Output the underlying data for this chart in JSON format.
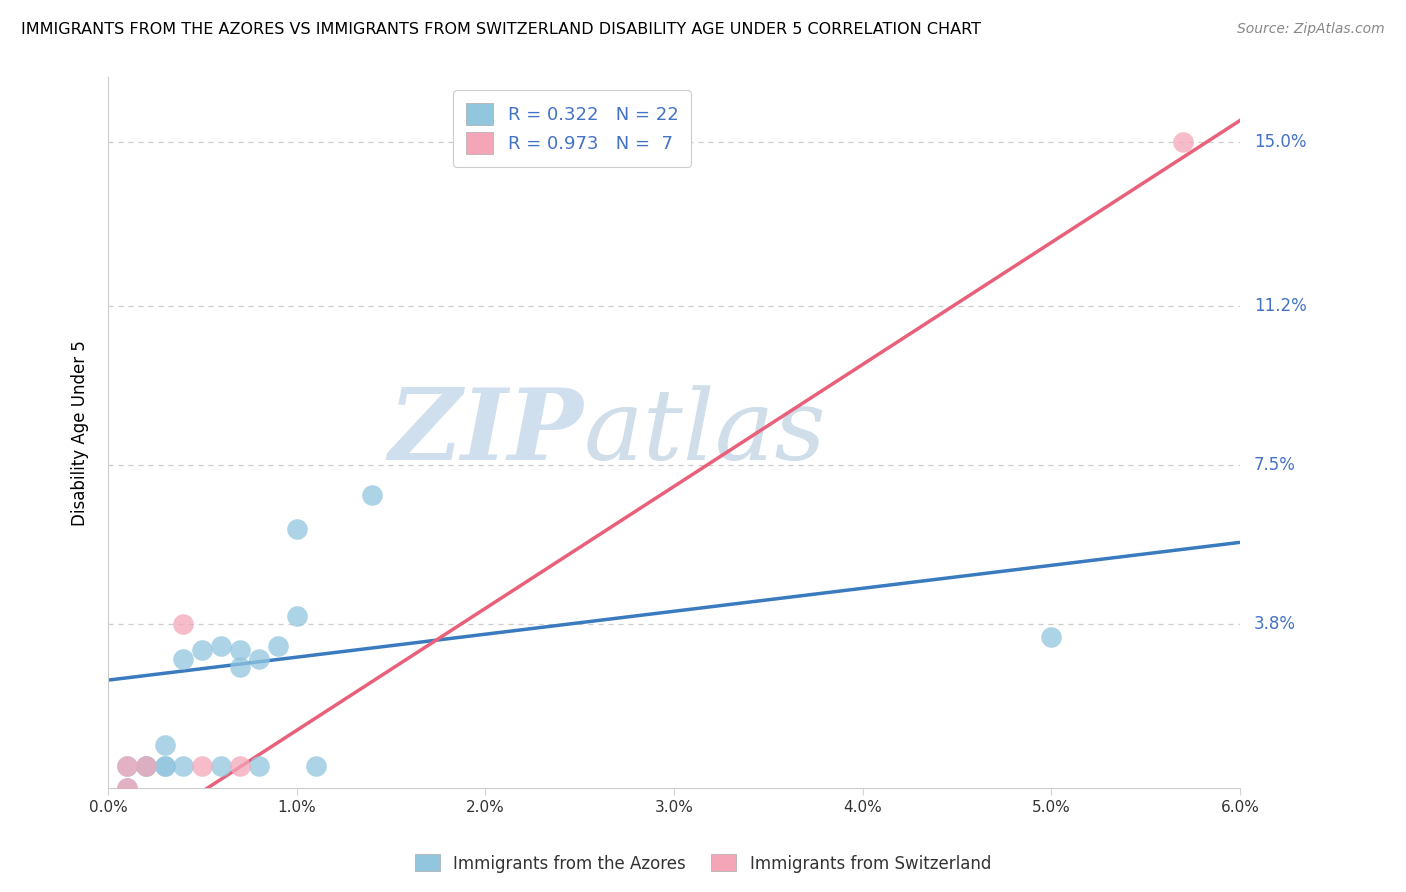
{
  "title": "IMMIGRANTS FROM THE AZORES VS IMMIGRANTS FROM SWITZERLAND DISABILITY AGE UNDER 5 CORRELATION CHART",
  "source": "Source: ZipAtlas.com",
  "ylabel": "Disability Age Under 5",
  "xmin": 0.0,
  "xmax": 0.06,
  "ymin": 0.0,
  "ymax": 0.165,
  "yticks": [
    0.0,
    0.038,
    0.075,
    0.112,
    0.15
  ],
  "ytick_labels": [
    "",
    "3.8%",
    "7.5%",
    "11.2%",
    "15.0%"
  ],
  "xticks": [
    0.0,
    0.01,
    0.02,
    0.03,
    0.04,
    0.05,
    0.06
  ],
  "watermark_zip": "ZIP",
  "watermark_atlas": "atlas",
  "legend_blue_r": "R = 0.322",
  "legend_blue_n": "N = 22",
  "legend_pink_r": "R = 0.973",
  "legend_pink_n": "N =  7",
  "blue_color": "#92c5de",
  "pink_color": "#f4a6b8",
  "blue_line_color": "#3a7bbf",
  "pink_line_color": "#e8607a",
  "blue_scatter": [
    [
      0.001,
      0.0
    ],
    [
      0.001,
      0.005
    ],
    [
      0.002,
      0.005
    ],
    [
      0.002,
      0.005
    ],
    [
      0.003,
      0.005
    ],
    [
      0.003,
      0.005
    ],
    [
      0.003,
      0.01
    ],
    [
      0.004,
      0.005
    ],
    [
      0.004,
      0.03
    ],
    [
      0.005,
      0.032
    ],
    [
      0.006,
      0.005
    ],
    [
      0.006,
      0.033
    ],
    [
      0.007,
      0.028
    ],
    [
      0.007,
      0.032
    ],
    [
      0.008,
      0.03
    ],
    [
      0.008,
      0.005
    ],
    [
      0.009,
      0.033
    ],
    [
      0.01,
      0.04
    ],
    [
      0.01,
      0.06
    ],
    [
      0.011,
      0.005
    ],
    [
      0.05,
      0.035
    ],
    [
      0.014,
      0.068
    ]
  ],
  "pink_scatter": [
    [
      0.001,
      0.0
    ],
    [
      0.001,
      0.005
    ],
    [
      0.002,
      0.005
    ],
    [
      0.004,
      0.038
    ],
    [
      0.005,
      0.005
    ],
    [
      0.007,
      0.005
    ],
    [
      0.057,
      0.15
    ]
  ],
  "blue_line": [
    [
      0.0,
      0.025
    ],
    [
      0.06,
      0.057
    ]
  ],
  "pink_line": [
    [
      0.0,
      -0.015
    ],
    [
      0.06,
      0.155
    ]
  ]
}
